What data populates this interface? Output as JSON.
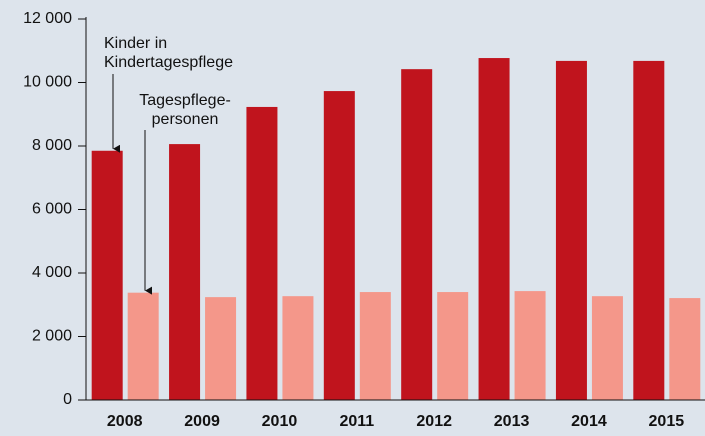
{
  "chart_data": {
    "type": "bar",
    "categories": [
      "2008",
      "2009",
      "2010",
      "2011",
      "2012",
      "2013",
      "2014",
      "2015"
    ],
    "series": [
      {
        "color": "#c0141d",
        "values": [
          7850,
          8060,
          9230,
          9730,
          10420,
          10770,
          10680,
          10680
        ]
      },
      {
        "color": "#f4978a",
        "values": [
          3380,
          3240,
          3270,
          3400,
          3400,
          3430,
          3270,
          3210
        ]
      }
    ],
    "annotations": [
      {
        "lines": [
          "Kinder in",
          "Kindertagespflege"
        ]
      },
      {
        "lines": [
          "Tagespflege-",
          "personen"
        ]
      }
    ],
    "ylim": [
      0,
      12000
    ],
    "yticks": [
      0,
      {
        "value": 2000,
        "label": "2 000"
      },
      {
        "value": 4000,
        "label": "4 000"
      },
      {
        "value": 6000,
        "label": "6 000"
      },
      {
        "value": 8000,
        "label": "8 000"
      },
      {
        "value": 10000,
        "label": "10 000"
      },
      {
        "value": 12000,
        "label": "12 000"
      }
    ],
    "background": "#dde4ec"
  }
}
